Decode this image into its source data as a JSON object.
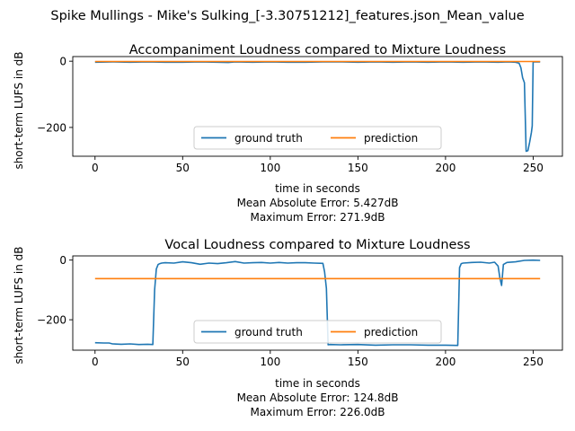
{
  "figure": {
    "suptitle": "Spike Mullings - Mike's Sulking_[-3.30751212]_features.json_Mean_value"
  },
  "colors": {
    "ground_truth": "#1f77b4",
    "prediction": "#ff7f0e"
  },
  "chart_data": [
    {
      "type": "line",
      "title": "Accompaniment Loudness compared to Mixture Loudness",
      "xlabel": "time in seconds",
      "ylabel": "short-term LUFS in dB",
      "xlim": [
        -12.7,
        266.7
      ],
      "ylim": [
        -287,
        14
      ],
      "xticks": [
        0,
        50,
        100,
        150,
        200,
        250
      ],
      "yticks": [
        0,
        -200
      ],
      "ytick_labels": [
        "0",
        "−200"
      ],
      "legend": {
        "placement": "lower center",
        "ncol": 2
      },
      "notes": [
        "Mean Absolute Error: 5.427dB",
        "Maximum Error: 271.9dB"
      ],
      "series": [
        {
          "name": "ground truth",
          "x": [
            0,
            10,
            20,
            30,
            40,
            50,
            60,
            70,
            76,
            80,
            90,
            100,
            110,
            120,
            130,
            140,
            150,
            160,
            170,
            180,
            190,
            200,
            210,
            220,
            230,
            236,
            240,
            242,
            243,
            244,
            245,
            246,
            247,
            248,
            249,
            249.5,
            250,
            252,
            254
          ],
          "y": [
            -3,
            -2,
            -3,
            -2,
            -3,
            -3,
            -2,
            -3,
            -4,
            -2,
            -3,
            -2,
            -3,
            -3,
            -2,
            -2,
            -3,
            -2,
            -3,
            -2,
            -3,
            -2,
            -3,
            -2,
            -3,
            -2,
            -3,
            -6,
            -20,
            -50,
            -65,
            -272,
            -270,
            -245,
            -215,
            -195,
            -2,
            -2,
            -2
          ]
        },
        {
          "name": "prediction",
          "x": [
            0,
            254
          ],
          "y": [
            -1,
            -1
          ]
        }
      ]
    },
    {
      "type": "line",
      "title": "Vocal Loudness compared to Mixture Loudness",
      "xlabel": "time in seconds",
      "ylabel": "short-term LUFS in dB",
      "xlim": [
        -12.7,
        266.7
      ],
      "ylim": [
        -302,
        14
      ],
      "xticks": [
        0,
        50,
        100,
        150,
        200,
        250
      ],
      "yticks": [
        0,
        -200
      ],
      "ytick_labels": [
        "0",
        "−200"
      ],
      "legend": {
        "placement": "lower center",
        "ncol": 2
      },
      "notes": [
        "Mean Absolute Error: 124.8dB",
        "Maximum Error: 226.0dB"
      ],
      "series": [
        {
          "name": "ground truth",
          "x": [
            0,
            5,
            8,
            10,
            15,
            20,
            25,
            30,
            33,
            34,
            35,
            36,
            37,
            38,
            40,
            45,
            50,
            55,
            60,
            65,
            70,
            75,
            80,
            85,
            90,
            95,
            100,
            105,
            110,
            115,
            120,
            125,
            130,
            131,
            132,
            133,
            134,
            140,
            150,
            160,
            170,
            180,
            190,
            200,
            207,
            208,
            209,
            210,
            215,
            220,
            225,
            228,
            230,
            231,
            232,
            233,
            235,
            240,
            245,
            250,
            254
          ],
          "y": [
            -277,
            -278,
            -278,
            -281,
            -282,
            -281,
            -283,
            -282,
            -283,
            -100,
            -30,
            -15,
            -12,
            -10,
            -9,
            -10,
            -6,
            -9,
            -14,
            -10,
            -12,
            -9,
            -5,
            -10,
            -9,
            -8,
            -10,
            -8,
            -10,
            -9,
            -9,
            -10,
            -11,
            -40,
            -95,
            -284,
            -283,
            -284,
            -283,
            -285,
            -284,
            -284,
            -285,
            -285,
            -286,
            -25,
            -12,
            -10,
            -8,
            -7,
            -10,
            -7,
            -20,
            -60,
            -85,
            -15,
            -8,
            -6,
            -1,
            0,
            -1
          ]
        },
        {
          "name": "prediction",
          "x": [
            0,
            254
          ],
          "y": [
            -62,
            -62
          ]
        }
      ]
    }
  ]
}
